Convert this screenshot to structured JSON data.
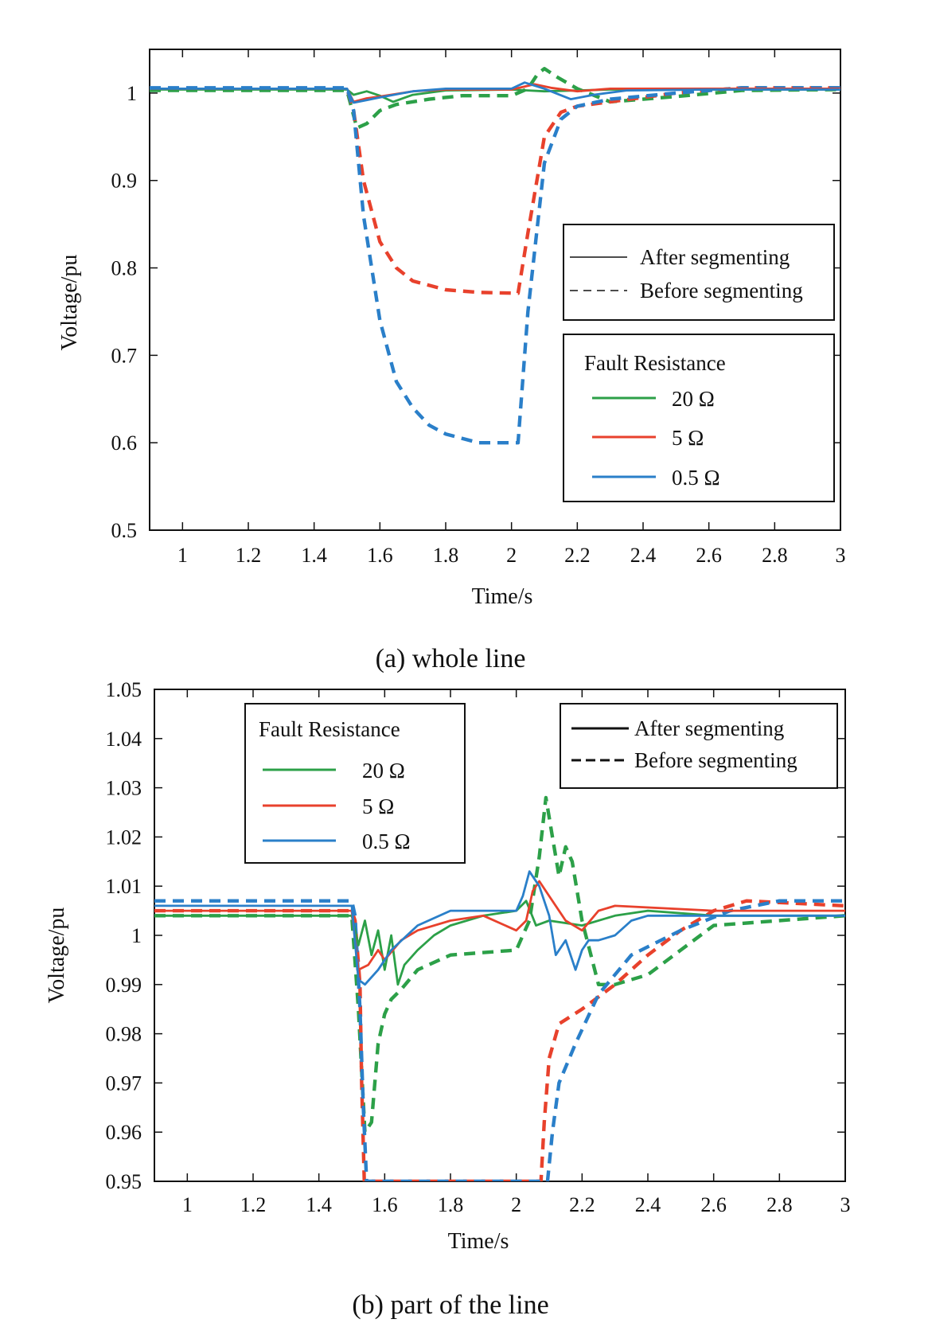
{
  "charts": [
    {
      "caption": "(a) whole line",
      "chart_data": {
        "type": "line",
        "xlabel": "Time/s",
        "ylabel": "Voltage/pu",
        "xlim": [
          0.9,
          3.0
        ],
        "ylim": [
          0.5,
          1.05
        ],
        "xticks": [
          1,
          1.2,
          1.4,
          1.6,
          1.8,
          2,
          2.2,
          2.4,
          2.6,
          2.8,
          3
        ],
        "yticks": [
          0.5,
          0.6,
          0.7,
          0.8,
          0.9,
          1
        ],
        "xtick_labels": [
          "1",
          "1.2",
          "1.4",
          "1.6",
          "1.8",
          "2",
          "2.2",
          "2.4",
          "2.6",
          "2.8",
          "3"
        ],
        "ytick_labels": [
          "0.5",
          "0.6",
          "0.7",
          "0.8",
          "0.9",
          "1"
        ],
        "style_legend": {
          "solid": "After segmenting",
          "dashed": "Before segmenting",
          "placement": "right-middle"
        },
        "resistance_legend": {
          "title": "Fault Resistance",
          "placement": "right-lower",
          "items": [
            "20 Ω",
            "5 Ω",
            "0.5 Ω"
          ]
        },
        "series": [
          {
            "name": "20 Ω",
            "style": "solid",
            "color": "#2ca048",
            "x": [
              0.9,
              1.5,
              1.52,
              1.56,
              1.6,
              1.64,
              1.7,
              1.8,
              2.0,
              2.05,
              2.1,
              2.3,
              2.6,
              3.0
            ],
            "y": [
              1.004,
              1.004,
              0.998,
              1.002,
              0.997,
              0.99,
              0.998,
              1.003,
              1.004,
              1.003,
              1.002,
              1.004,
              1.004,
              1.004
            ]
          },
          {
            "name": "5 Ω",
            "style": "solid",
            "color": "#e8412c",
            "x": [
              0.9,
              1.5,
              1.52,
              1.56,
              1.6,
              1.7,
              1.8,
              2.0,
              2.07,
              2.12,
              2.2,
              2.3,
              2.6,
              3.0
            ],
            "y": [
              1.005,
              1.005,
              0.99,
              0.994,
              0.996,
              1.002,
              1.004,
              1.004,
              1.01,
              1.006,
              1.002,
              1.005,
              1.005,
              1.005
            ]
          },
          {
            "name": "0.5 Ω",
            "style": "solid",
            "color": "#2a7fc9",
            "x": [
              0.9,
              1.5,
              1.52,
              1.56,
              1.6,
              1.7,
              1.8,
              2.0,
              2.04,
              2.1,
              2.18,
              2.25,
              2.35,
              2.6,
              3.0
            ],
            "y": [
              1.005,
              1.005,
              0.989,
              0.992,
              0.995,
              1.002,
              1.005,
              1.005,
              1.012,
              1.005,
              0.993,
              0.998,
              1.003,
              1.004,
              1.004
            ]
          },
          {
            "name": "20 Ω",
            "style": "dashed",
            "color": "#2ca048",
            "x": [
              0.9,
              1.5,
              1.53,
              1.56,
              1.6,
              1.65,
              1.75,
              1.85,
              2.0,
              2.05,
              2.08,
              2.1,
              2.14,
              2.2,
              2.3,
              2.5,
              2.7,
              3.0
            ],
            "y": [
              1.003,
              1.003,
              0.96,
              0.965,
              0.98,
              0.987,
              0.993,
              0.997,
              0.997,
              1.005,
              1.022,
              1.028,
              1.018,
              1.005,
              0.99,
              0.996,
              1.003,
              1.004
            ]
          },
          {
            "name": "5 Ω",
            "style": "dashed",
            "color": "#e8412c",
            "x": [
              0.9,
              1.5,
              1.52,
              1.55,
              1.6,
              1.65,
              1.7,
              1.8,
              1.9,
              2.02,
              2.05,
              2.1,
              2.15,
              2.2,
              2.3,
              2.5,
              2.7,
              3.0
            ],
            "y": [
              1.005,
              1.005,
              0.98,
              0.9,
              0.83,
              0.8,
              0.785,
              0.775,
              0.772,
              0.771,
              0.84,
              0.95,
              0.978,
              0.985,
              0.99,
              1.0,
              1.006,
              1.006
            ]
          },
          {
            "name": "0.5 Ω",
            "style": "dashed",
            "color": "#2a7fc9",
            "x": [
              0.9,
              1.5,
              1.52,
              1.55,
              1.6,
              1.65,
              1.7,
              1.75,
              1.8,
              1.9,
              2.02,
              2.05,
              2.1,
              2.15,
              2.2,
              2.3,
              2.5,
              2.7,
              3.0
            ],
            "y": [
              1.006,
              1.006,
              0.98,
              0.86,
              0.74,
              0.67,
              0.64,
              0.62,
              0.61,
              0.6,
              0.6,
              0.75,
              0.92,
              0.97,
              0.985,
              0.993,
              1.0,
              1.006,
              1.006
            ]
          }
        ]
      }
    },
    {
      "caption": "(b) part of the line",
      "chart_data": {
        "type": "line",
        "xlabel": "Time/s",
        "ylabel": "Voltage/pu",
        "xlim": [
          0.9,
          3.0
        ],
        "ylim": [
          0.95,
          1.05
        ],
        "xticks": [
          1,
          1.2,
          1.4,
          1.6,
          1.8,
          2,
          2.2,
          2.4,
          2.6,
          2.8,
          3
        ],
        "yticks": [
          0.95,
          0.96,
          0.97,
          0.98,
          0.99,
          1,
          1.01,
          1.02,
          1.03,
          1.04,
          1.05
        ],
        "xtick_labels": [
          "1",
          "1.2",
          "1.4",
          "1.6",
          "1.8",
          "2",
          "2.2",
          "2.4",
          "2.6",
          "2.8",
          "3"
        ],
        "ytick_labels": [
          "0.95",
          "0.96",
          "0.97",
          "0.98",
          "0.99",
          "1",
          "1.01",
          "1.02",
          "1.03",
          "1.04",
          "1.05"
        ],
        "style_legend": {
          "solid": "After segmenting",
          "dashed": "Before segmenting",
          "placement": "top-right"
        },
        "resistance_legend": {
          "title": "Fault Resistance",
          "placement": "top-left",
          "items": [
            "20 Ω",
            "5 Ω",
            "0.5 Ω"
          ]
        },
        "series": [
          {
            "name": "20 Ω",
            "style": "solid",
            "color": "#2ca048",
            "x": [
              0.9,
              1.5,
              1.52,
              1.54,
              1.56,
              1.58,
              1.6,
              1.62,
              1.64,
              1.66,
              1.7,
              1.75,
              1.8,
              1.9,
              2.0,
              2.03,
              2.06,
              2.1,
              2.2,
              2.3,
              2.4,
              2.6,
              3.0
            ],
            "y": [
              1.004,
              1.004,
              0.998,
              1.003,
              0.996,
              1.001,
              0.993,
              1.0,
              0.99,
              0.994,
              0.997,
              1.0,
              1.002,
              1.004,
              1.005,
              1.007,
              1.002,
              1.003,
              1.002,
              1.004,
              1.005,
              1.004,
              1.004
            ]
          },
          {
            "name": "5 Ω",
            "style": "solid",
            "color": "#e8412c",
            "x": [
              0.9,
              1.5,
              1.52,
              1.55,
              1.58,
              1.6,
              1.65,
              1.7,
              1.8,
              1.9,
              2.0,
              2.03,
              2.05,
              2.07,
              2.1,
              2.15,
              2.2,
              2.25,
              2.3,
              2.6,
              3.0
            ],
            "y": [
              1.005,
              1.005,
              0.993,
              0.994,
              0.997,
              0.995,
              0.999,
              1.001,
              1.003,
              1.004,
              1.001,
              1.003,
              1.009,
              1.011,
              1.008,
              1.003,
              1.001,
              1.005,
              1.006,
              1.005,
              1.005
            ]
          },
          {
            "name": "0.5 Ω",
            "style": "solid",
            "color": "#2a7fc9",
            "x": [
              0.9,
              1.5,
              1.52,
              1.54,
              1.58,
              1.62,
              1.7,
              1.8,
              1.9,
              2.0,
              2.02,
              2.04,
              2.07,
              2.1,
              2.12,
              2.15,
              2.18,
              2.2,
              2.22,
              2.25,
              2.3,
              2.35,
              2.4,
              2.6,
              3.0
            ],
            "y": [
              1.006,
              1.006,
              0.991,
              0.99,
              0.993,
              0.997,
              1.002,
              1.005,
              1.005,
              1.005,
              1.008,
              1.013,
              1.01,
              1.004,
              0.996,
              0.999,
              0.993,
              0.997,
              0.999,
              0.999,
              1.0,
              1.003,
              1.004,
              1.004,
              1.004
            ]
          },
          {
            "name": "20 Ω",
            "style": "dashed",
            "color": "#2ca048",
            "x": [
              0.9,
              1.5,
              1.52,
              1.54,
              1.56,
              1.58,
              1.6,
              1.62,
              1.65,
              1.7,
              1.8,
              2.0,
              2.04,
              2.07,
              2.09,
              2.11,
              2.13,
              2.15,
              2.17,
              2.2,
              2.25,
              2.3,
              2.4,
              2.5,
              2.6,
              3.0
            ],
            "y": [
              1.004,
              1.004,
              0.985,
              0.96,
              0.962,
              0.978,
              0.984,
              0.987,
              0.989,
              0.993,
              0.996,
              0.997,
              1.003,
              1.016,
              1.028,
              1.02,
              1.012,
              1.018,
              1.015,
              1.003,
              0.99,
              0.99,
              0.992,
              0.997,
              1.002,
              1.004
            ]
          },
          {
            "name": "5 Ω",
            "style": "dashed",
            "color": "#e8412c",
            "x": [
              0.9,
              1.5,
              1.51,
              1.525,
              1.53,
              1.538,
              2.075,
              2.085,
              2.1,
              2.13,
              2.2,
              2.3,
              2.4,
              2.5,
              2.6,
              2.7,
              3.0
            ],
            "y": [
              1.005,
              1.005,
              1.003,
              0.99,
              0.97,
              0.95,
              0.95,
              0.962,
              0.975,
              0.982,
              0.985,
              0.99,
              0.996,
              1.001,
              1.005,
              1.007,
              1.006
            ]
          },
          {
            "name": "0.5 Ω",
            "style": "dashed",
            "color": "#2a7fc9",
            "x": [
              0.9,
              1.5,
              1.51,
              1.525,
              1.535,
              1.545,
              2.095,
              2.11,
              2.13,
              2.18,
              2.25,
              2.35,
              2.5,
              2.65,
              2.8,
              3.0
            ],
            "y": [
              1.007,
              1.007,
              1.004,
              0.985,
              0.965,
              0.95,
              0.95,
              0.96,
              0.97,
              0.978,
              0.988,
              0.996,
              1.001,
              1.005,
              1.007,
              1.007
            ]
          }
        ]
      }
    }
  ],
  "colors": {
    "green": "#2ca048",
    "red": "#e8412c",
    "blue": "#2a7fc9",
    "axis": "#111111"
  }
}
